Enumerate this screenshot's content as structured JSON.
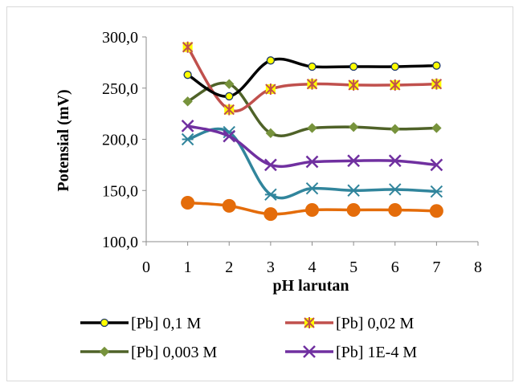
{
  "chart_data": {
    "type": "line",
    "title": "",
    "xlabel": "pH larutan",
    "ylabel": "Potensial (mV)",
    "xlim": [
      0,
      8
    ],
    "ylim": [
      100,
      300
    ],
    "x_ticks": [
      "0",
      "1",
      "2",
      "3",
      "4",
      "5",
      "6",
      "7",
      "8"
    ],
    "y_ticks": [
      "100,0",
      "150,0",
      "200,0",
      "250,0",
      "300,0"
    ],
    "grid": false,
    "legend_position": "bottom",
    "x": [
      1,
      2,
      3,
      4,
      5,
      6,
      7
    ],
    "series": [
      {
        "name": "[Pb] 0,1 M",
        "color": "#000000",
        "marker": "circle",
        "marker_fill": "#ffff00",
        "marker_stroke": "#1f3864",
        "values": [
          263,
          242,
          277,
          271,
          271,
          271,
          272
        ]
      },
      {
        "name": "[Pb] 0,02 M",
        "color": "#c0504d",
        "marker": "star",
        "marker_fill": "#ffff00",
        "marker_stroke": "#c0504d",
        "values": [
          290,
          229,
          249,
          254,
          253,
          253,
          254
        ]
      },
      {
        "name": "[Pb] 0,003 M",
        "color": "#4f6228",
        "marker": "diamond",
        "marker_fill": "#77933c",
        "marker_stroke": "#77933c",
        "values": [
          237,
          254,
          206,
          211,
          212,
          210,
          211
        ]
      },
      {
        "name": "[Pb] 1E-4 M",
        "color": "#7030a0",
        "marker": "x",
        "marker_fill": "none",
        "marker_stroke": "#7030a0",
        "values": [
          213,
          203,
          175,
          178,
          179,
          179,
          175
        ]
      },
      {
        "name": "",
        "color": "#31859c",
        "marker": "asterisk",
        "marker_fill": "none",
        "marker_stroke": "#31859c",
        "values": [
          200,
          207,
          146,
          152,
          150,
          151,
          149
        ]
      },
      {
        "name": "",
        "color": "#e46c0a",
        "marker": "bigcircle",
        "marker_fill": "#e46c0a",
        "marker_stroke": "#e46c0a",
        "values": [
          138,
          135,
          127,
          131,
          131,
          131,
          130
        ]
      }
    ]
  }
}
